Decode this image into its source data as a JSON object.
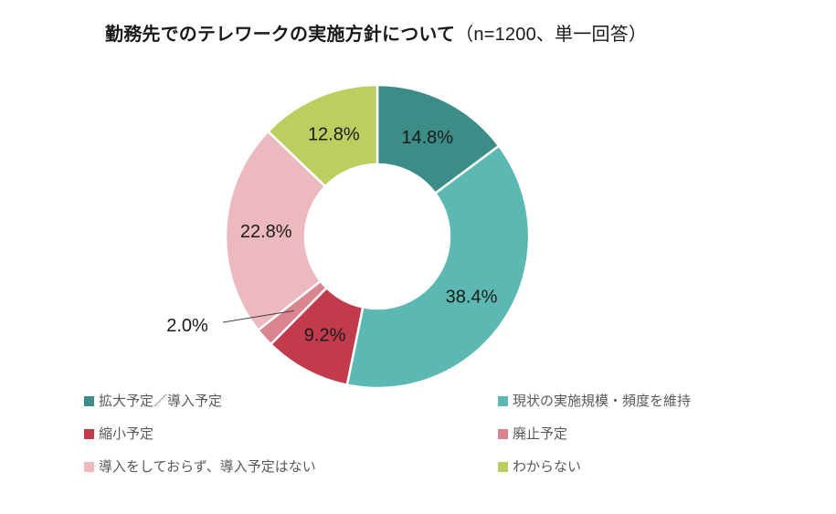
{
  "chart_data": {
    "type": "donut",
    "title": "勤務先でのテレワークの実施方針について（n=1200、単一回答）",
    "title_main": "勤務先でのテレワークの実施方針について",
    "title_note": "（n=1200、単一回答）",
    "sample_size": 1200,
    "response_type": "単一回答",
    "unit": "%",
    "start_angle_deg": 0,
    "direction": "clockwise",
    "legend_position": "bottom",
    "segments": [
      {
        "label": "拡大予定／導入予定",
        "value": 14.8,
        "color": "#3C8C87"
      },
      {
        "label": "現状の実施規模・頻度を維持",
        "value": 38.4,
        "color": "#5CB8B2"
      },
      {
        "label": "縮小予定",
        "value": 9.2,
        "color": "#C23B4D"
      },
      {
        "label": "廃止予定",
        "value": 2.0,
        "color": "#D9848E",
        "label_outside": true
      },
      {
        "label": "導入をしておらず、導入予定はない",
        "value": 22.8,
        "color": "#EDB9C0"
      },
      {
        "label": "わからない",
        "value": 12.8,
        "color": "#BDCE60"
      }
    ]
  }
}
